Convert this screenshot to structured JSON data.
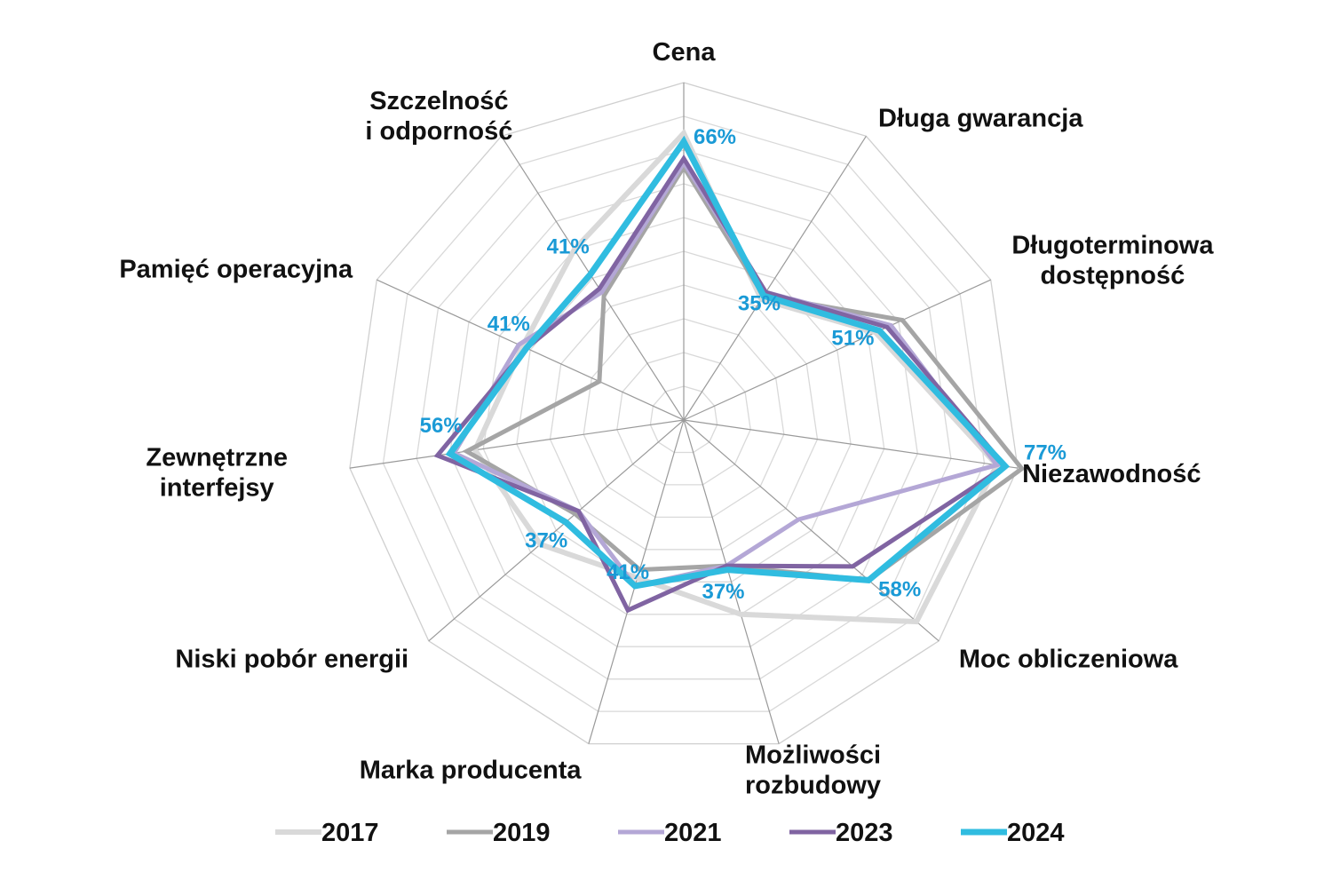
{
  "chart_data": {
    "type": "radar",
    "categories": [
      [
        "Cena"
      ],
      [
        "Długa gwarancja"
      ],
      [
        "Długoterminowa",
        "dostępność"
      ],
      [
        "Niezawodność"
      ],
      [
        "Moc obliczeniowa"
      ],
      [
        "Możliwości",
        "rozbudowy"
      ],
      [
        "Marka producenta"
      ],
      [
        "Niski pobór energii"
      ],
      [
        "Zewnętrzne",
        "interfejsy"
      ],
      [
        "Pamięć operacyjna"
      ],
      [
        "Szczelność",
        "i odporność"
      ]
    ],
    "rmax": 80,
    "rings": 10,
    "series": [
      {
        "name": "2017",
        "color": "#d9d9d9",
        "width": 6,
        "values": [
          68,
          34,
          50,
          75,
          73,
          48,
          39,
          45,
          50,
          42,
          48
        ]
      },
      {
        "name": "2019",
        "color": "#a5a5a5",
        "width": 5,
        "values": [
          60,
          35,
          57,
          81,
          58,
          36,
          37,
          34,
          52,
          22,
          35
        ]
      },
      {
        "name": "2021",
        "color": "#b4a7d6",
        "width": 5,
        "values": [
          61,
          36,
          54,
          75,
          36,
          36,
          41,
          33,
          55,
          43,
          36
        ]
      },
      {
        "name": "2023",
        "color": "#8064a2",
        "width": 5,
        "values": [
          62,
          36,
          53,
          77,
          53,
          36,
          47,
          33,
          59,
          41,
          37
        ]
      },
      {
        "name": "2024",
        "color": "#30bce0",
        "width": 7,
        "values": [
          66,
          35,
          51,
          77,
          58,
          37,
          41,
          37,
          56,
          41,
          41
        ]
      }
    ],
    "value_labels": [
      "66%",
      "35%",
      "51%",
      "77%",
      "58%",
      "37%",
      "41%",
      "37%",
      "56%",
      "41%",
      "41%"
    ],
    "legend_position": "bottom"
  }
}
